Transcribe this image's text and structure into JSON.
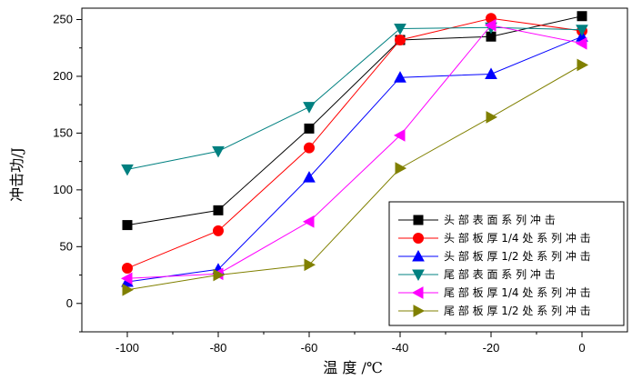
{
  "chart_data": {
    "type": "line",
    "xlabel": "温 度 /℃",
    "ylabel": "冲击功/J",
    "xlim": [
      -110,
      10
    ],
    "ylim": [
      -25,
      260
    ],
    "x_ticks": [
      -100,
      -80,
      -60,
      -40,
      -20,
      0
    ],
    "y_ticks": [
      0,
      50,
      100,
      150,
      200,
      250
    ],
    "x_tick_labels": [
      "-100",
      "-80",
      "-60",
      "-40",
      "-20",
      "0"
    ],
    "y_tick_labels": [
      "0",
      "50",
      "100",
      "150",
      "200",
      "250"
    ],
    "grid": false,
    "legend_position": "bottom-right",
    "x": [
      -100,
      -80,
      -60,
      -40,
      -20,
      0
    ],
    "series": [
      {
        "name": "头 部 表 面 系 列 冲 击",
        "values": [
          69,
          82,
          154,
          232,
          235,
          253
        ],
        "color": "#000000",
        "marker": "square"
      },
      {
        "name": "头 部 板 厚 1/4 处 系 列 冲 击",
        "values": [
          31,
          64,
          137,
          232,
          251,
          240
        ],
        "color": "#ff0000",
        "marker": "circle"
      },
      {
        "name": "头 部 板 厚 1/2 处 系 列 冲 击",
        "values": [
          19,
          30,
          111,
          199,
          202,
          235
        ],
        "color": "#0000ff",
        "marker": "triangle-up"
      },
      {
        "name": "尾 部 表 面 系 列 冲 击",
        "values": [
          118,
          134,
          173,
          242,
          243,
          241
        ],
        "color": "#008080",
        "marker": "triangle-down"
      },
      {
        "name": "尾 部 板 厚 1/4 处 系 列 冲 击",
        "values": [
          22,
          26,
          72,
          148,
          245,
          229
        ],
        "color": "#ff00ff",
        "marker": "triangle-left"
      },
      {
        "name": "尾 部 板 厚 1/2 处 系 列 冲 击",
        "values": [
          12,
          25,
          34,
          119,
          164,
          210
        ],
        "color": "#808000",
        "marker": "triangle-right"
      }
    ]
  }
}
